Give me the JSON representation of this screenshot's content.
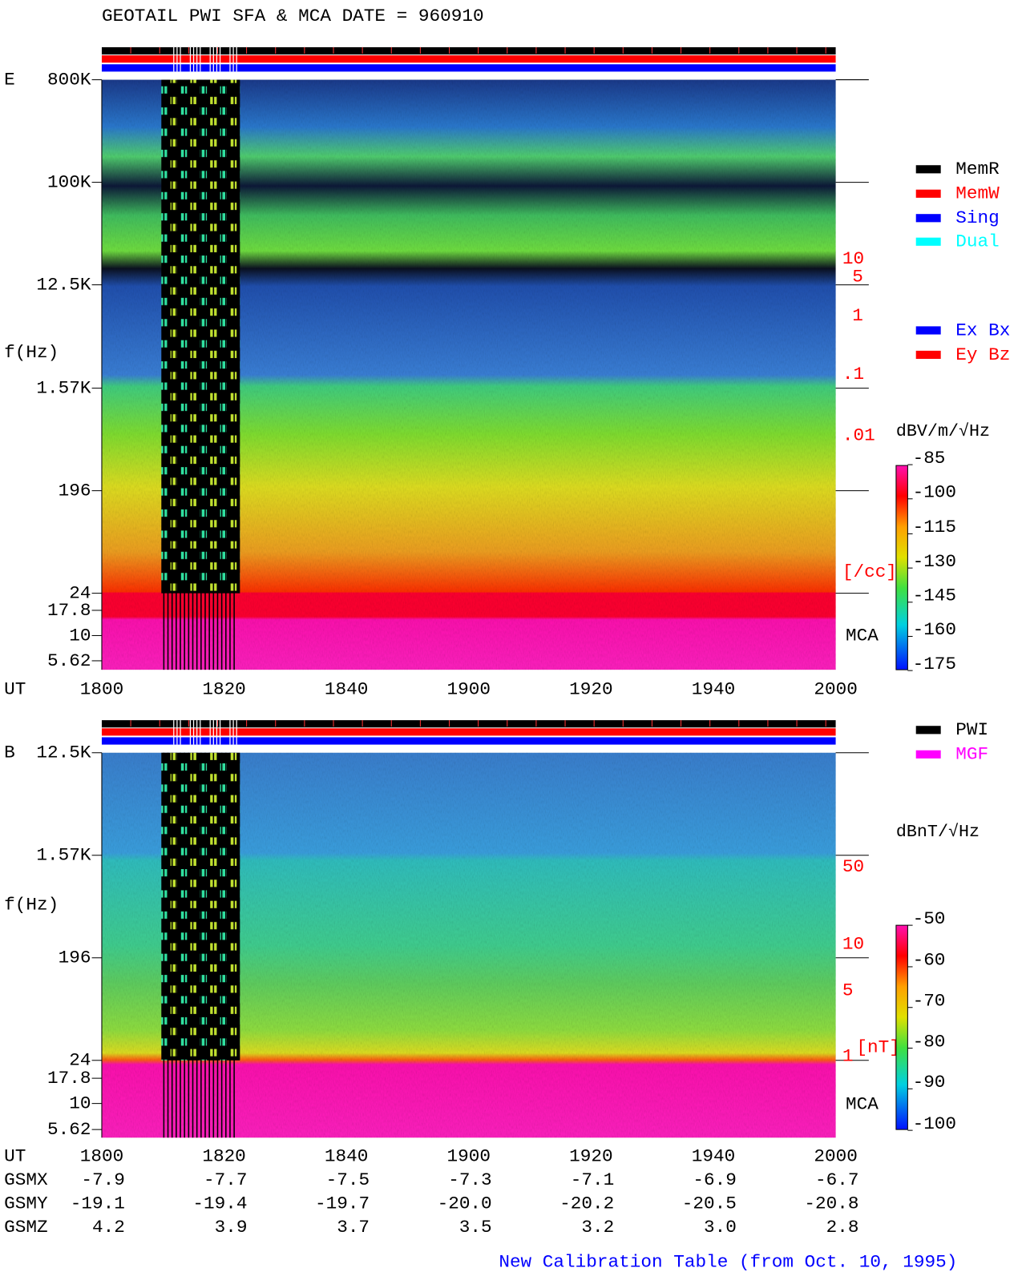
{
  "title": "GEOTAIL  PWI SFA & MCA   DATE = 960910",
  "panels": [
    {
      "label": "E",
      "y_axis_label": "f(Hz)",
      "y_ticks": [
        "800K",
        "100K",
        "12.5K",
        "1.57K",
        "196",
        "24",
        "17.8",
        "10",
        "5.62"
      ],
      "right_labels": [
        "10",
        "5",
        "1",
        ".1",
        ".01",
        "[/cc]"
      ],
      "mca": "MCA",
      "colorbar_unit": "dBV/m/√Hz",
      "colorbar_ticks": [
        "-85",
        "-100",
        "-115",
        "-130",
        "-145",
        "-160",
        "-175"
      ],
      "x_label": "UT",
      "x_ticks": [
        "1800",
        "1820",
        "1840",
        "1900",
        "1920",
        "1940",
        "2000"
      ],
      "legends": [
        {
          "label": "MemR",
          "color": "#000000"
        },
        {
          "label": "MemW",
          "color": "#ff0000"
        },
        {
          "label": "Sing",
          "color": "#0000ff"
        },
        {
          "label": "Dual",
          "color": "#00ffff"
        },
        {
          "label": "Ex Bx",
          "color": "#0000ff"
        },
        {
          "label": "Ey Bz",
          "color": "#ff0000"
        }
      ]
    },
    {
      "label": "B",
      "y_axis_label": "f(Hz)",
      "y_ticks": [
        "12.5K",
        "1.57K",
        "196",
        "24",
        "17.8",
        "10",
        "5.62"
      ],
      "right_labels": [
        "50",
        "10",
        "5",
        "1",
        "[nT]"
      ],
      "mca": "MCA",
      "colorbar_unit": "dBnT/√Hz",
      "colorbar_ticks": [
        "-50",
        "-60",
        "-70",
        "-80",
        "-90",
        "-100"
      ],
      "x_label": "UT",
      "x_ticks": [
        "1800",
        "1820",
        "1840",
        "1900",
        "1920",
        "1940",
        "2000"
      ],
      "legends": [
        {
          "label": "PWI",
          "color": "#000000"
        },
        {
          "label": "MGF",
          "color": "#ff00ff"
        }
      ]
    }
  ],
  "orbit": [
    {
      "label": "GSMX",
      "values": [
        "-7.9",
        "-7.7",
        "-7.5",
        "-7.3",
        "-7.1",
        "-6.9",
        "-6.7"
      ]
    },
    {
      "label": "GSMY",
      "values": [
        "-19.1",
        "-19.4",
        "-19.7",
        "-20.0",
        "-20.2",
        "-20.5",
        "-20.8"
      ]
    },
    {
      "label": "GSMZ",
      "values": [
        "4.2",
        "3.9",
        "3.7",
        "3.5",
        "3.2",
        "3.0",
        "2.8"
      ]
    }
  ],
  "footer": "New Calibration Table (from Oct. 10, 1995)"
}
